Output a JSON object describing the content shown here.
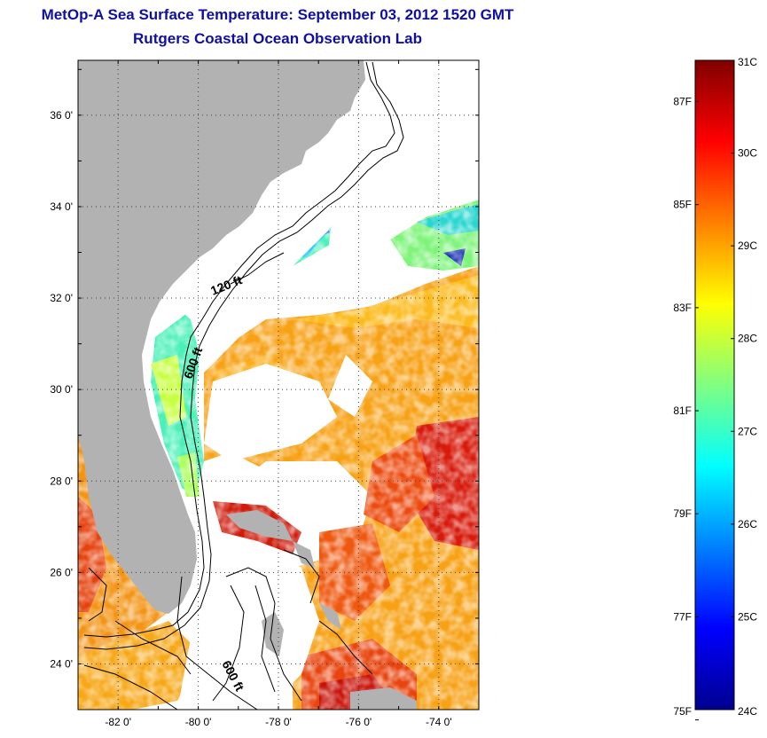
{
  "title": "MetOp-A Sea Surface Temperature:  September 03, 2012 1520 GMT",
  "subtitle": "Rutgers Coastal Ocean Observation Lab",
  "map": {
    "lat_ticks": [
      "36 0'",
      "34 0'",
      "32 0'",
      "30 0'",
      "28 0'",
      "26 0'",
      "24 0'"
    ],
    "lon_ticks": [
      "-82 0'",
      "-80 0'",
      "-78 0'",
      "-76 0'",
      "-74 0'"
    ],
    "lat_range": [
      23,
      37.2
    ],
    "lon_range": [
      -83,
      -73
    ],
    "contour_labels": [
      "120 ft",
      "600 ft",
      "600 ft"
    ],
    "land_color": "#b2b2b2",
    "nodata_color": "#ffffff"
  },
  "colorbar": {
    "c_labels": [
      "31C",
      "30C",
      "29C",
      "28C",
      "27C",
      "26C",
      "25C",
      "24C"
    ],
    "f_labels": [
      "87F",
      "85F",
      "83F",
      "81F",
      "79F",
      "77F",
      "75F"
    ],
    "colormap": "jet",
    "range_c": [
      24,
      31
    ]
  }
}
